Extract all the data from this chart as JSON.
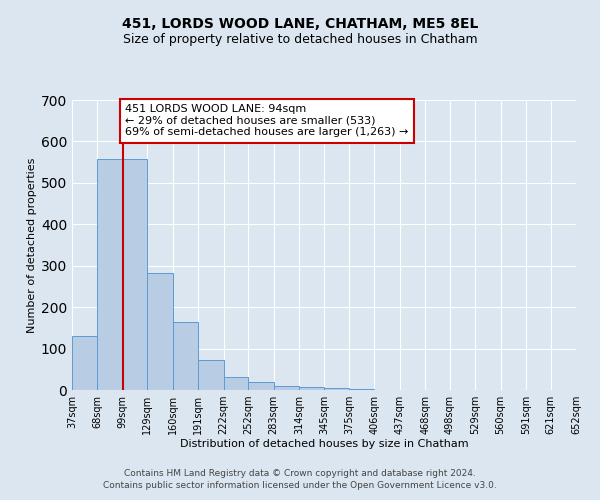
{
  "title": "451, LORDS WOOD LANE, CHATHAM, ME5 8EL",
  "subtitle": "Size of property relative to detached houses in Chatham",
  "xlabel": "Distribution of detached houses by size in Chatham",
  "ylabel": "Number of detached properties",
  "bar_edges": [
    37,
    68,
    99,
    129,
    160,
    191,
    222,
    252,
    283,
    314,
    345,
    375,
    406,
    437,
    468,
    498,
    529,
    560,
    591,
    621,
    652
  ],
  "bar_heights": [
    130,
    558,
    558,
    283,
    163,
    72,
    32,
    19,
    10,
    8,
    5,
    3,
    0,
    0,
    0,
    0,
    0,
    0,
    0,
    0
  ],
  "bar_color": "#b8cce4",
  "bar_edge_color": "#5b9bd5",
  "vline_color": "#cc0000",
  "vline_x": 99,
  "annotation_text": "451 LORDS WOOD LANE: 94sqm\n← 29% of detached houses are smaller (533)\n69% of semi-detached houses are larger (1,263) →",
  "annotation_box_color": "#ffffff",
  "annotation_box_edge": "#cc0000",
  "ylim": [
    0,
    700
  ],
  "yticks": [
    0,
    100,
    200,
    300,
    400,
    500,
    600,
    700
  ],
  "tick_labels": [
    "37sqm",
    "68sqm",
    "99sqm",
    "129sqm",
    "160sqm",
    "191sqm",
    "222sqm",
    "252sqm",
    "283sqm",
    "314sqm",
    "345sqm",
    "375sqm",
    "406sqm",
    "437sqm",
    "468sqm",
    "498sqm",
    "529sqm",
    "560sqm",
    "591sqm",
    "621sqm",
    "652sqm"
  ],
  "bg_color": "#dce6f1",
  "plot_bg_color": "#dce6f1",
  "footer_line1": "Contains HM Land Registry data © Crown copyright and database right 2024.",
  "footer_line2": "Contains public sector information licensed under the Open Government Licence v3.0.",
  "grid_color": "#ffffff",
  "title_fontsize": 10,
  "subtitle_fontsize": 9,
  "axis_label_fontsize": 8,
  "tick_fontsize": 7,
  "annotation_fontsize": 8,
  "footer_fontsize": 6.5
}
